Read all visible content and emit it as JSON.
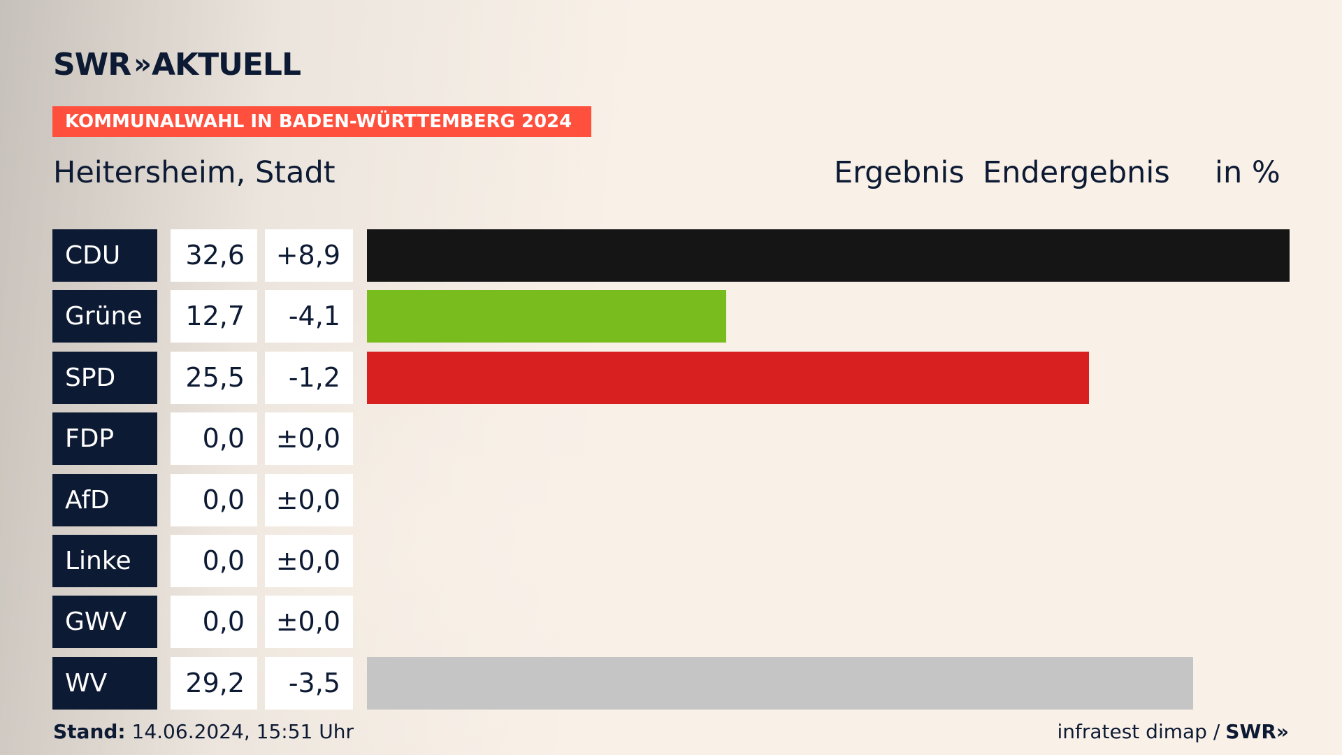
{
  "brand": {
    "name": "SWR",
    "chevrons": "»",
    "product": "AKTUELL"
  },
  "banner": "KOMMUNALWAHL IN BADEN-WÜRTTEMBERG 2024",
  "place": "Heitersheim, Stadt",
  "headers": {
    "ergebnis": "Ergebnis",
    "status": "Endergebnis",
    "unit": "in %"
  },
  "chart_data": {
    "type": "bar",
    "orientation": "horizontal",
    "title": "Heitersheim, Stadt",
    "categories": [
      "CDU",
      "Grüne",
      "SPD",
      "FDP",
      "AfD",
      "Linke",
      "GWV",
      "WV"
    ],
    "values": [
      32.6,
      12.7,
      25.5,
      0.0,
      0.0,
      0.0,
      0.0,
      29.2
    ],
    "value_labels": [
      "32,6",
      "12,7",
      "25,5",
      "0,0",
      "0,0",
      "0,0",
      "0,0",
      "29,2"
    ],
    "diff_labels": [
      "+8,9",
      "-4,1",
      "-1,2",
      "±0,0",
      "±0,0",
      "±0,0",
      "±0,0",
      "-3,5"
    ],
    "colors": [
      "#151515",
      "#79bc1e",
      "#d7201f",
      "#f6d41b",
      "#0f9fd6",
      "#b63b7e",
      "#888888",
      "#c5c5c5"
    ],
    "xlim": [
      0,
      32.6
    ],
    "unit": "in %"
  },
  "footer": {
    "stand_label": "Stand:",
    "stand_value": "14.06.2024, 15:51 Uhr",
    "source": "infratest dimap /",
    "source_brand": "SWR",
    "source_chevrons": "»"
  }
}
